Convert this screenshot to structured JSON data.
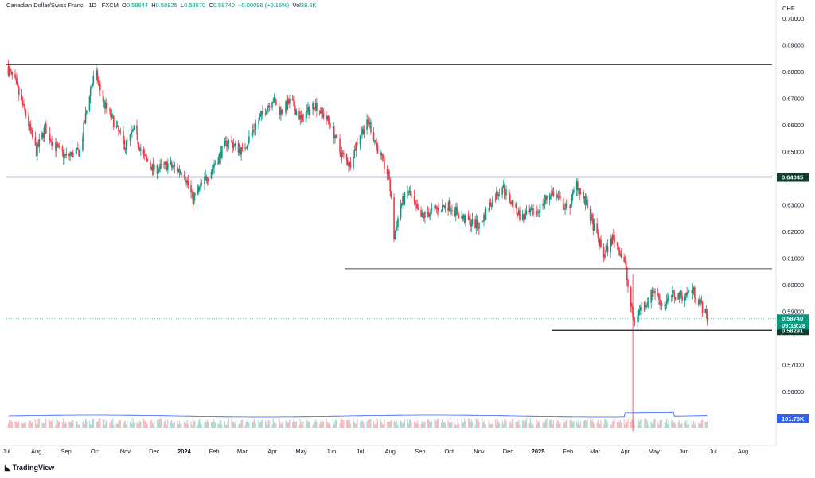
{
  "header": {
    "symbol": "Canadian Dollar/Swiss Franc · 1D · FXCM",
    "open_label": "O",
    "open": "0.58644",
    "high_label": "H",
    "high": "0.58825",
    "low_label": "L",
    "low": "0.58570",
    "close_label": "C",
    "close": "0.58740",
    "change": "+0.00096 (+0.16%)",
    "vol_label": "Vol",
    "vol": "38.6K"
  },
  "footer": {
    "brand": "TradingView"
  },
  "colors": {
    "up": "#089981",
    "down": "#f23645",
    "line": "#131722",
    "volume_ma": "#2962ff",
    "price_badge": "#089981",
    "level_badge": "#0f3d2e",
    "vol_badge": "#2962ff"
  },
  "chart_data": {
    "type": "candlestick",
    "currency": "CHF",
    "y_ticks": [
      "0.70000",
      "0.69000",
      "0.68000",
      "0.67000",
      "0.66000",
      "0.65000",
      "0.63000",
      "0.62000",
      "0.61000",
      "0.60000",
      "0.59000",
      "0.57000",
      "0.56000"
    ],
    "y_tick_values": [
      0.7,
      0.69,
      0.68,
      0.67,
      0.66,
      0.65,
      0.63,
      0.62,
      0.61,
      0.6,
      0.59,
      0.57,
      0.56
    ],
    "x_ticks": [
      "Jul",
      "Aug",
      "Sep",
      "Oct",
      "Nov",
      "Dec",
      "2024",
      "Feb",
      "Mar",
      "Apr",
      "May",
      "Jun",
      "Jul",
      "Aug",
      "Sep",
      "Oct",
      "Nov",
      "Dec",
      "2025",
      "Feb",
      "Mar",
      "Apr",
      "May",
      "Jun",
      "Jul",
      "Aug"
    ],
    "bold_x_ticks": [
      "2024",
      "2025"
    ],
    "x_tick_dates": [
      "2023-07-01",
      "2023-08-01",
      "2023-09-01",
      "2023-10-01",
      "2023-11-01",
      "2023-12-01",
      "2024-01-01",
      "2024-02-01",
      "2024-03-01",
      "2024-04-01",
      "2024-05-01",
      "2024-06-01",
      "2024-07-01",
      "2024-08-01",
      "2024-09-01",
      "2024-10-01",
      "2024-11-01",
      "2024-12-01",
      "2025-01-01",
      "2025-02-01",
      "2025-03-01",
      "2025-04-01",
      "2025-05-01",
      "2025-06-01",
      "2025-07-01",
      "2025-08-01"
    ],
    "price_path": [
      [
        "2023-07-01",
        0.682
      ],
      [
        "2023-07-10",
        0.676
      ],
      [
        "2023-07-20",
        0.665
      ],
      [
        "2023-08-01",
        0.65
      ],
      [
        "2023-08-10",
        0.659
      ],
      [
        "2023-08-20",
        0.652
      ],
      [
        "2023-08-31",
        0.648
      ],
      [
        "2023-09-15",
        0.65
      ],
      [
        "2023-09-25",
        0.672
      ],
      [
        "2023-10-01",
        0.68
      ],
      [
        "2023-10-10",
        0.668
      ],
      [
        "2023-10-20",
        0.661
      ],
      [
        "2023-11-01",
        0.652
      ],
      [
        "2023-11-10",
        0.658
      ],
      [
        "2023-11-20",
        0.648
      ],
      [
        "2023-12-01",
        0.643
      ],
      [
        "2023-12-15",
        0.645
      ],
      [
        "2024-01-01",
        0.642
      ],
      [
        "2024-01-10",
        0.632
      ],
      [
        "2024-01-20",
        0.638
      ],
      [
        "2024-02-01",
        0.645
      ],
      [
        "2024-02-15",
        0.654
      ],
      [
        "2024-03-01",
        0.65
      ],
      [
        "2024-03-15",
        0.66
      ],
      [
        "2024-04-01",
        0.67
      ],
      [
        "2024-04-10",
        0.665
      ],
      [
        "2024-04-20",
        0.669
      ],
      [
        "2024-05-01",
        0.662
      ],
      [
        "2024-05-15",
        0.668
      ],
      [
        "2024-06-01",
        0.66
      ],
      [
        "2024-06-10",
        0.65
      ],
      [
        "2024-06-20",
        0.645
      ],
      [
        "2024-07-01",
        0.657
      ],
      [
        "2024-07-10",
        0.661
      ],
      [
        "2024-07-20",
        0.65
      ],
      [
        "2024-07-31",
        0.64
      ],
      [
        "2024-08-05",
        0.618
      ],
      [
        "2024-08-12",
        0.63
      ],
      [
        "2024-08-20",
        0.635
      ],
      [
        "2024-09-01",
        0.625
      ],
      [
        "2024-09-15",
        0.628
      ],
      [
        "2024-10-01",
        0.63
      ],
      [
        "2024-10-15",
        0.625
      ],
      [
        "2024-11-01",
        0.622
      ],
      [
        "2024-11-15",
        0.632
      ],
      [
        "2024-11-25",
        0.637
      ],
      [
        "2024-12-01",
        0.633
      ],
      [
        "2024-12-15",
        0.625
      ],
      [
        "2025-01-01",
        0.628
      ],
      [
        "2025-01-15",
        0.635
      ],
      [
        "2025-02-01",
        0.628
      ],
      [
        "2025-02-10",
        0.638
      ],
      [
        "2025-02-20",
        0.63
      ],
      [
        "2025-03-01",
        0.62
      ],
      [
        "2025-03-10",
        0.611
      ],
      [
        "2025-03-20",
        0.618
      ],
      [
        "2025-04-01",
        0.608
      ],
      [
        "2025-04-05",
        0.596
      ],
      [
        "2025-04-10",
        0.586
      ],
      [
        "2025-04-15",
        0.59
      ],
      [
        "2025-04-22",
        0.593
      ],
      [
        "2025-05-01",
        0.598
      ],
      [
        "2025-05-10",
        0.592
      ],
      [
        "2025-05-20",
        0.596
      ],
      [
        "2025-06-01",
        0.596
      ],
      [
        "2025-06-10",
        0.598
      ],
      [
        "2025-06-18",
        0.593
      ],
      [
        "2025-06-25",
        0.5874
      ]
    ],
    "horizontal_levels": [
      {
        "value": 0.6825,
        "from": "2023-07-01",
        "to": "2025-08-31"
      },
      {
        "value": 0.64045,
        "from": "2023-07-01",
        "to": "2025-08-31",
        "label": "0.64045"
      },
      {
        "value": 0.606,
        "from": "2024-06-15",
        "to": "2025-08-31"
      },
      {
        "value": 0.58291,
        "from": "2025-01-15",
        "to": "2025-08-31",
        "label": "0.58291"
      }
    ],
    "last_price": {
      "value": 0.5874,
      "label": "0.58740",
      "countdown": "09:19:28"
    },
    "volume_ma_label": "101.75K"
  }
}
